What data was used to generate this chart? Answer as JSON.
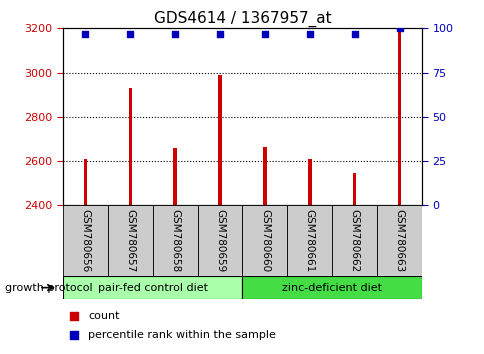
{
  "title": "GDS4614 / 1367957_at",
  "samples": [
    "GSM780656",
    "GSM780657",
    "GSM780658",
    "GSM780659",
    "GSM780660",
    "GSM780661",
    "GSM780662",
    "GSM780663"
  ],
  "counts": [
    2610,
    2930,
    2660,
    2990,
    2665,
    2610,
    2545,
    3190
  ],
  "percentile_ranks": [
    97,
    97,
    97,
    97,
    97,
    97,
    97,
    100
  ],
  "ylim_left": [
    2400,
    3200
  ],
  "ylim_right": [
    0,
    100
  ],
  "yticks_left": [
    2400,
    2600,
    2800,
    3000,
    3200
  ],
  "yticks_right": [
    0,
    25,
    50,
    75,
    100
  ],
  "bar_color": "#cc0000",
  "dot_color": "#0000bb",
  "bar_width": 0.08,
  "group1_label": "pair-fed control diet",
  "group2_label": "zinc-deficient diet",
  "group1_color": "#aaffaa",
  "group2_color": "#44dd44",
  "left_axis_color": "#cc0000",
  "right_axis_color": "#0000bb",
  "title_fontsize": 11,
  "tick_label_fontsize": 7.5,
  "legend_count_color": "#cc0000",
  "legend_pct_color": "#0000bb",
  "growth_protocol_label": "growth protocol",
  "background_color": "#ffffff",
  "plot_bg_color": "#ffffff",
  "tick_bg_color": "#cccccc"
}
